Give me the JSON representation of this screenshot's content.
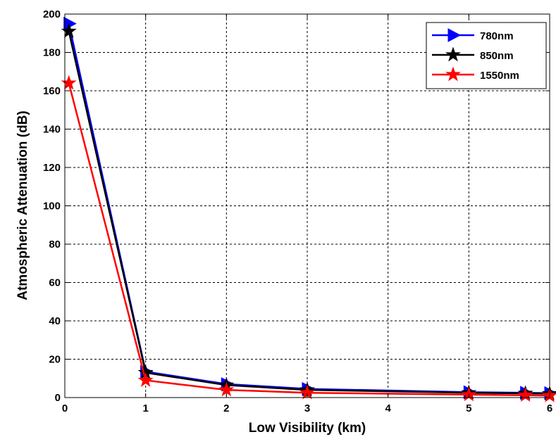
{
  "chart_data": {
    "type": "line",
    "title": "",
    "xlabel": "Low Visibility (km)",
    "ylabel": "Atmospheric Attenuation (dB)",
    "xlim": [
      0,
      6
    ],
    "ylim": [
      0,
      200
    ],
    "xticks": [
      0,
      1,
      2,
      3,
      4,
      5,
      6
    ],
    "yticks": [
      0,
      20,
      40,
      60,
      80,
      100,
      120,
      140,
      160,
      180,
      200
    ],
    "grid": true,
    "legend_position": "top-right",
    "series": [
      {
        "name": "780nm",
        "color": "#0000ff",
        "marker": "triangle-right",
        "x": [
          0.05,
          1,
          2,
          3,
          5,
          5.7,
          6
        ],
        "y": [
          195,
          13.5,
          7,
          4.5,
          2.8,
          2.5,
          2.3
        ]
      },
      {
        "name": "850nm",
        "color": "#000000",
        "marker": "star",
        "x": [
          0.05,
          1,
          2,
          3,
          5,
          5.7,
          6
        ],
        "y": [
          191,
          13,
          6.5,
          4,
          2.5,
          2.2,
          2.0
        ]
      },
      {
        "name": "1550nm",
        "color": "#ff0000",
        "marker": "star",
        "x": [
          0.05,
          1,
          2,
          3,
          5,
          5.7,
          6
        ],
        "y": [
          164,
          9,
          4,
          2.5,
          1.5,
          1.2,
          1.0
        ]
      }
    ]
  }
}
